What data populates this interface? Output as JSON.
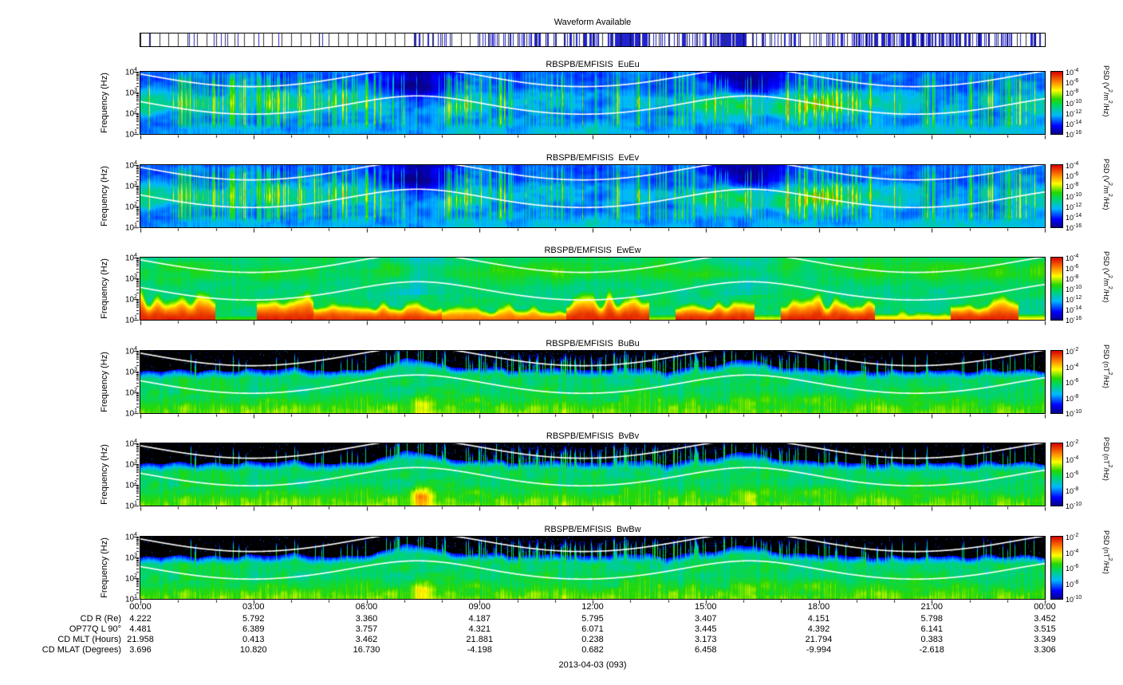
{
  "waveform": {
    "title": "Waveform Available",
    "line_color": "#2222cc",
    "segments": [
      [
        0,
        0.3,
        0.035
      ],
      [
        0.3,
        0.4,
        0.18
      ],
      [
        0.4,
        0.52,
        0.35
      ],
      [
        0.52,
        0.56,
        0.85
      ],
      [
        0.56,
        0.63,
        0.25
      ],
      [
        0.63,
        0.67,
        0.9
      ],
      [
        0.67,
        0.76,
        0.22
      ],
      [
        0.76,
        0.87,
        0.5
      ],
      [
        0.87,
        0.96,
        0.45
      ],
      [
        0.96,
        1,
        0.3
      ]
    ]
  },
  "axes": {
    "ylabel": "Frequency (Hz)",
    "yticks": [
      "10^4",
      "10^3",
      "10^2",
      "10^1"
    ],
    "xticks": [
      "00:00",
      "03:00",
      "06:00",
      "09:00",
      "12:00",
      "15:00",
      "18:00",
      "21:00",
      "00:00"
    ]
  },
  "chart_data": {
    "type": "heatmap",
    "description": "Six 24-hour dynamic spectrograms (log frequency 10 Hz - 10 kHz vs UT time, color = log10 PSD) from RBSP-B EMFISIS for 2013-04-03. White overplotted curves (fce/2 and lower-hybrid-like line) rise toward the panel top near perigee (~07:20 and ~16:10 UT) and dip near apogee.",
    "x_range_hours": [
      0,
      24
    ],
    "y_range_hz": [
      10,
      10000
    ],
    "y_scale": "log",
    "white_lines": {
      "curves": [
        "fce/2",
        "fce/42.8"
      ],
      "model": "fce = 8.736e5/R^3 with R(t) = 4.6 - 1.5*cos(2*pi*(t-7.35)/8.8)"
    },
    "panels": [
      {
        "title": "RBSPB/EMFISIS  EuEu",
        "style": "E",
        "seed": 1,
        "colorbar": {
          "label": "PSD (V^2/m^2/Hz)",
          "ticks": [
            "10^-4",
            "10^-6",
            "10^-8",
            "10^-10",
            "10^-12",
            "10^-14",
            "10^-16"
          ],
          "range_log10": [
            -16,
            -4
          ]
        }
      },
      {
        "title": "RBSPB/EMFISIS  EvEv",
        "style": "E",
        "seed": 1,
        "colorbar": {
          "label": "PSD (V^2/m^2/Hz)",
          "ticks": [
            "10^-4",
            "10^-6",
            "10^-8",
            "10^-10",
            "10^-12",
            "10^-14",
            "10^-16"
          ],
          "range_log10": [
            -16,
            -4
          ]
        }
      },
      {
        "title": "RBSPB/EMFISIS  EwEw",
        "style": "Ew",
        "seed": 3,
        "colorbar": {
          "label": "PSD (V^2/m^2/Hz)",
          "ticks": [
            "10^-4",
            "10^-6",
            "10^-8",
            "10^-10",
            "10^-12",
            "10^-14",
            "10^-16"
          ],
          "range_log10": [
            -16,
            -4
          ]
        }
      },
      {
        "title": "RBSPB/EMFISIS  BuBu",
        "style": "B",
        "seed": 4,
        "burst": 1.4,
        "colorbar": {
          "label": "PSD (nT^2/Hz)",
          "ticks": [
            "10^-2",
            "10^-4",
            "10^-6",
            "10^-8",
            "10^-10"
          ],
          "range_log10": [
            -10,
            -2
          ]
        }
      },
      {
        "title": "RBSPB/EMFISIS  BvBv",
        "style": "B",
        "seed": 4,
        "burst": 2.6,
        "colorbar": {
          "label": "PSD (nT^2/Hz)",
          "ticks": [
            "10^-2",
            "10^-4",
            "10^-6",
            "10^-8",
            "10^-10"
          ],
          "range_log10": [
            -10,
            -2
          ]
        }
      },
      {
        "title": "RBSPB/EMFISIS  BwBw",
        "style": "B",
        "seed": 4,
        "burst": 1.7,
        "colorbar": {
          "label": "PSD (nT^2/Hz)",
          "ticks": [
            "10^-2",
            "10^-4",
            "10^-6",
            "10^-8",
            "10^-10"
          ],
          "range_log10": [
            -10,
            -2
          ]
        }
      }
    ]
  },
  "ephemeris": {
    "rows": [
      {
        "label": "CD R (Re)",
        "values": [
          "4.222",
          "5.792",
          "3.360",
          "4.187",
          "5.795",
          "3.407",
          "4.151",
          "5.798",
          "3.452"
        ]
      },
      {
        "label": "OP77Q L 90°",
        "values": [
          "4.481",
          "6.389",
          "3.757",
          "4.321",
          "6.071",
          "3.445",
          "4.392",
          "6.141",
          "3.515"
        ]
      },
      {
        "label": "CD MLT (Hours)",
        "values": [
          "21.958",
          "0.413",
          "3.462",
          "21.881",
          "0.238",
          "3.173",
          "21.794",
          "0.383",
          "3.349"
        ]
      },
      {
        "label": "CD MLAT (Degrees)",
        "values": [
          "3.696",
          "10.820",
          "16.730",
          "-4.198",
          "0.682",
          "6.458",
          "-9.994",
          "-2.618",
          "3.306"
        ]
      }
    ]
  },
  "footer": {
    "date": "2013-04-03 (093)"
  }
}
